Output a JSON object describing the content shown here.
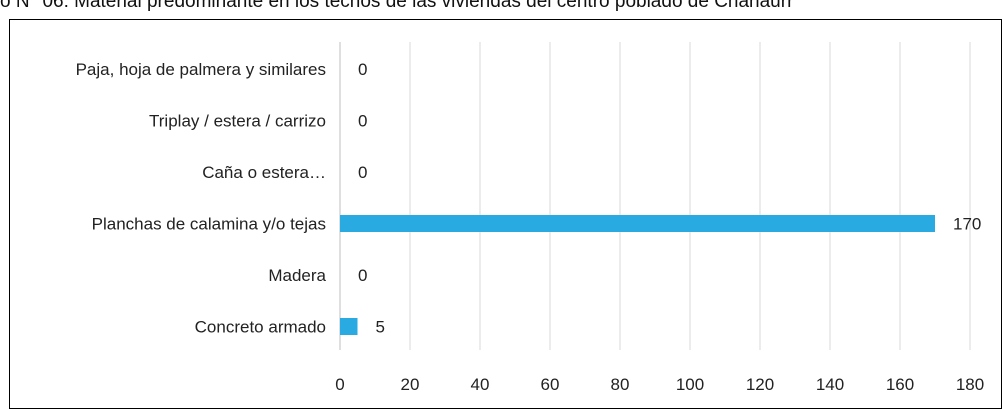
{
  "chart_data": {
    "type": "bar",
    "orientation": "horizontal",
    "title": "o N° 06: Material predominante en los techos de las viviendas del centro poblado de Chanaurr",
    "categories": [
      "Paja, hoja de palmera y similares",
      "Triplay / estera / carrizo",
      "Caña o estera…",
      "Planchas de calamina y/o tejas",
      "Madera",
      "Concreto armado"
    ],
    "values": [
      0,
      0,
      0,
      170,
      0,
      5
    ],
    "x_ticks": [
      "0",
      "20",
      "40",
      "60",
      "80",
      "100",
      "120",
      "140",
      "160",
      "180"
    ],
    "xlim": [
      0,
      180
    ],
    "grid": "vertical",
    "legend": "none",
    "bar_color": "#29aae1"
  }
}
